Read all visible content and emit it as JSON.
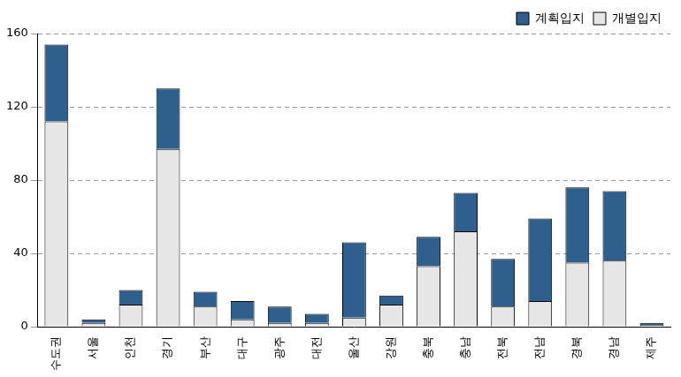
{
  "chart_data": {
    "type": "bar",
    "categories": [
      "수도권",
      "서울",
      "인천",
      "경기",
      "부산",
      "대구",
      "광주",
      "대전",
      "울산",
      "강원",
      "충북",
      "충남",
      "전북",
      "전남",
      "경북",
      "경남",
      "제주"
    ],
    "series": [
      {
        "name": "개별입지",
        "color": "#e6e6e6",
        "values": [
          112,
          2,
          12,
          97,
          11,
          4,
          2,
          2,
          5,
          12,
          33,
          52,
          11,
          14,
          35,
          36,
          1
        ]
      },
      {
        "name": "계획입지",
        "color": "#2f5f8c",
        "values": [
          42,
          2,
          8,
          33,
          8,
          10,
          9,
          5,
          41,
          5,
          16,
          21,
          26,
          45,
          41,
          38,
          1
        ]
      }
    ],
    "stacked": true,
    "ylim": [
      0,
      160
    ],
    "yticks": [
      0,
      40,
      80,
      120,
      160
    ],
    "grid": true,
    "legend": "upper right"
  }
}
